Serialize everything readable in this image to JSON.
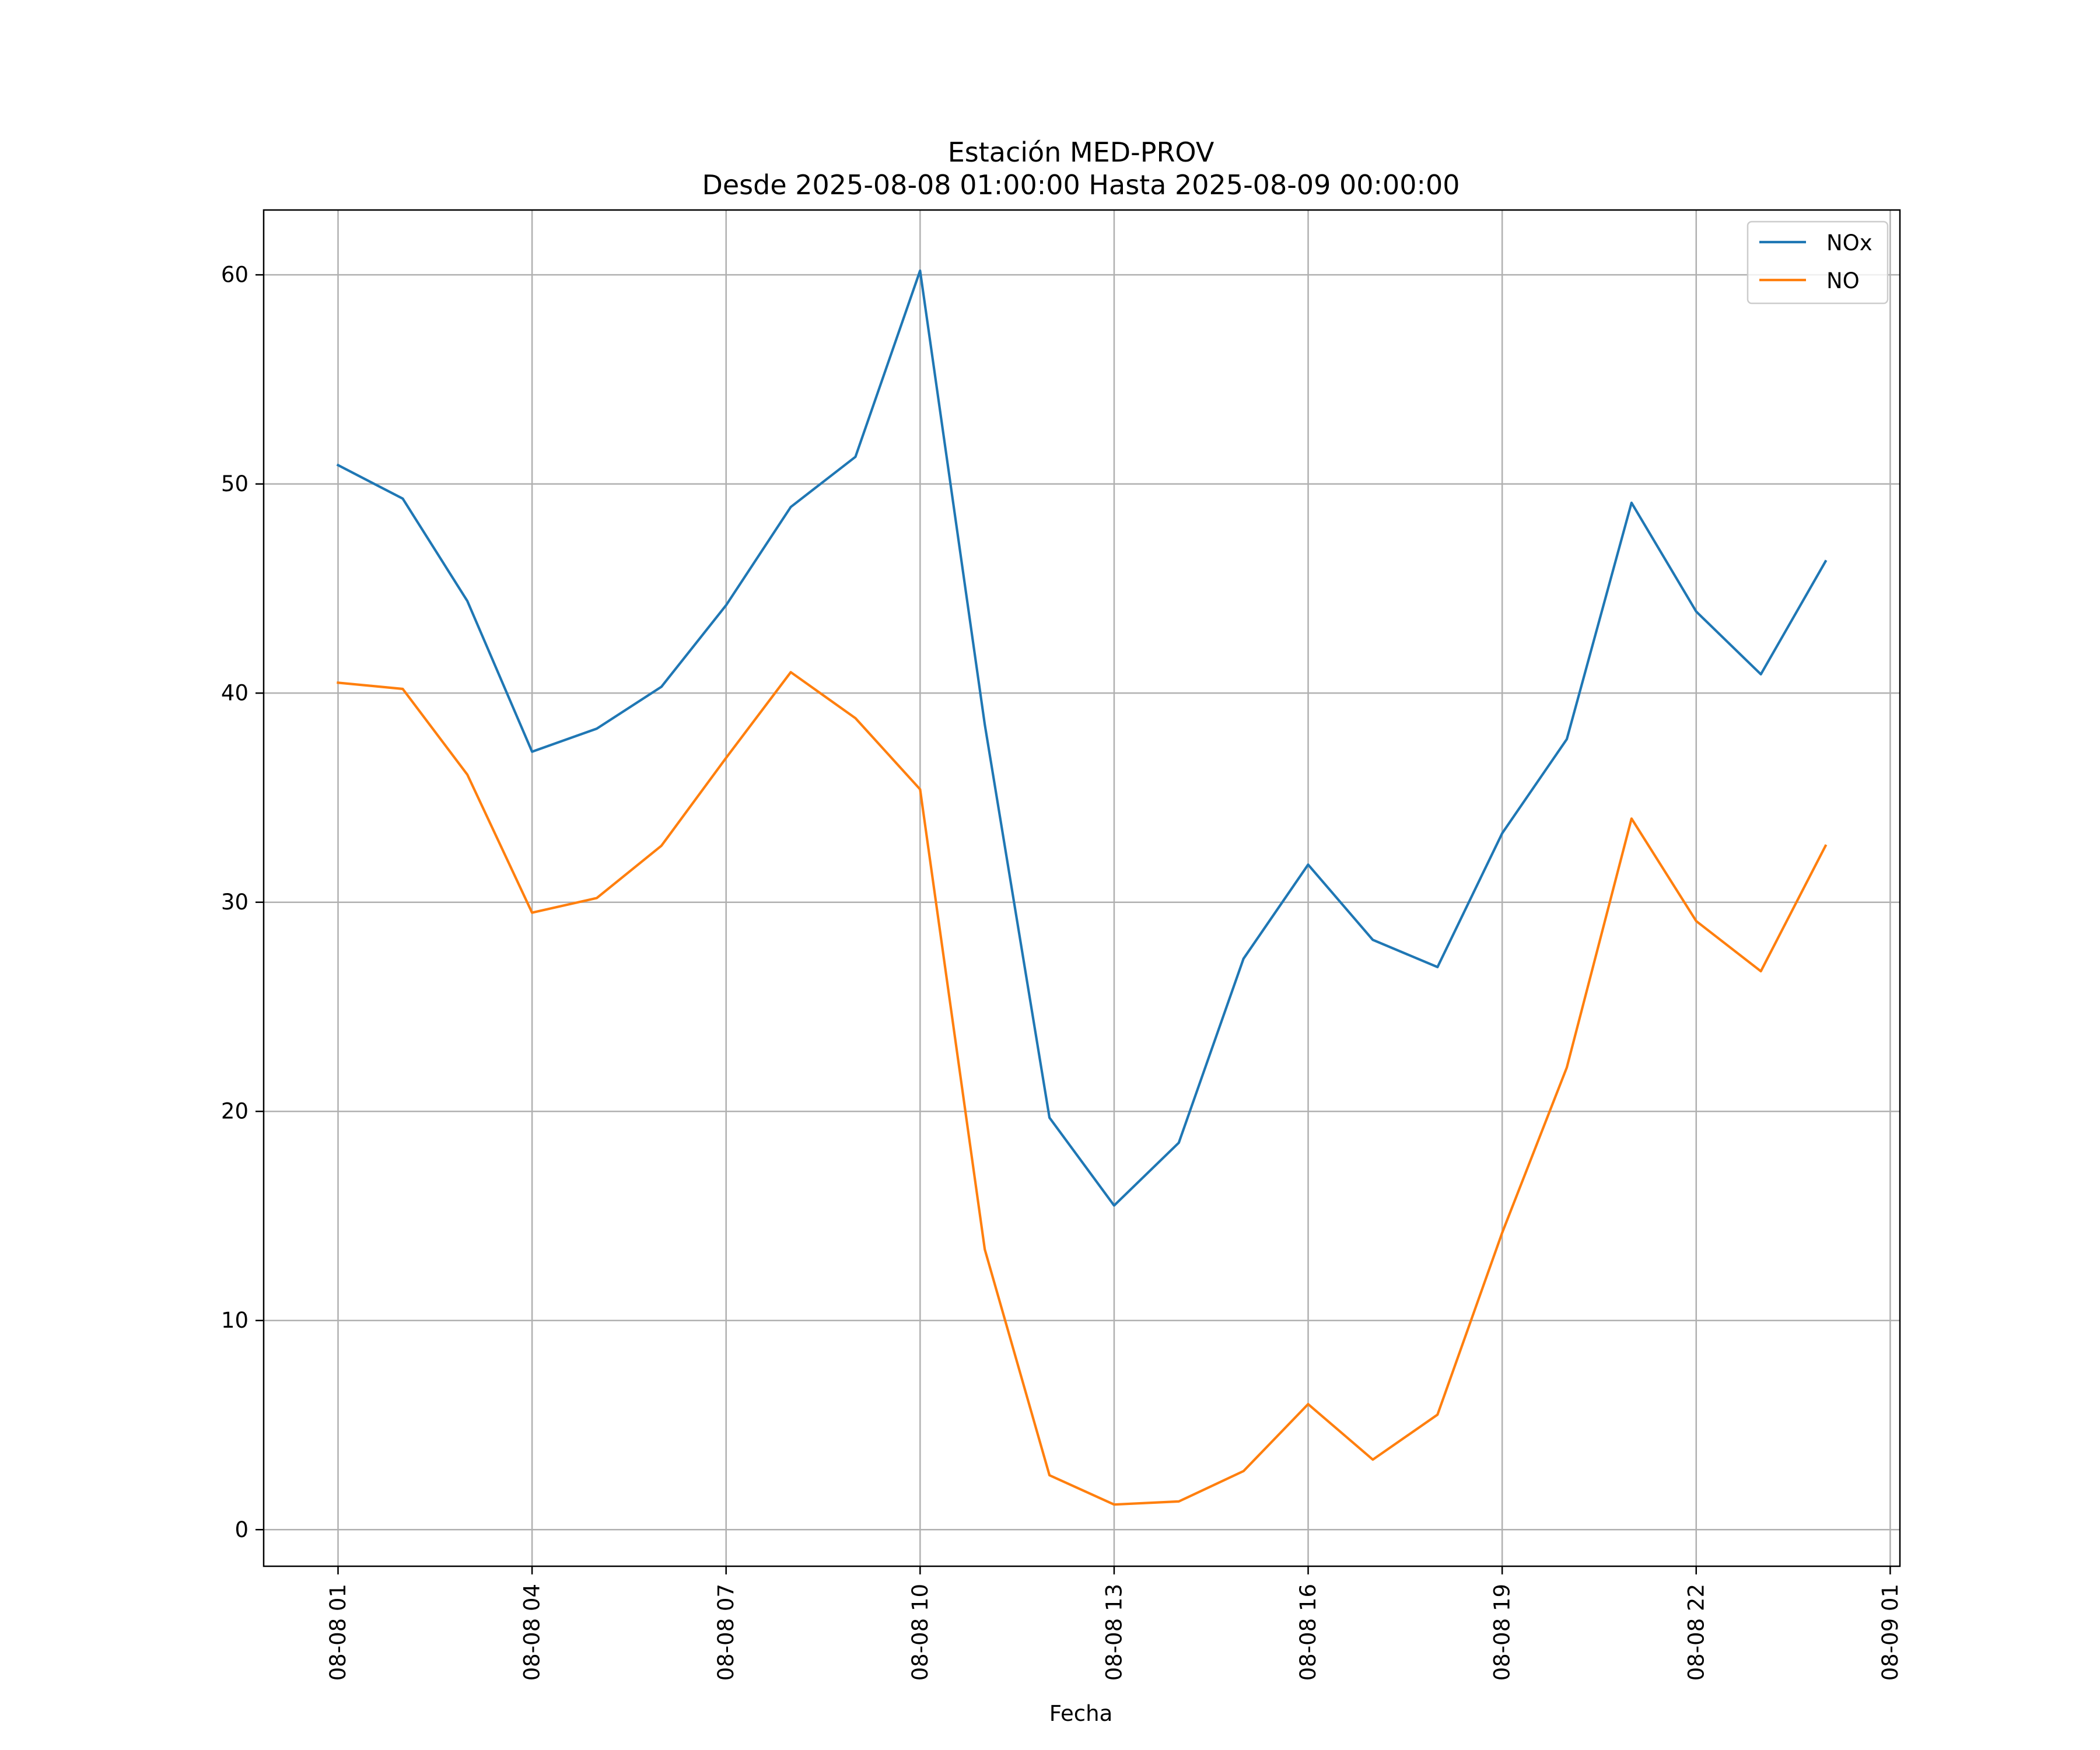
{
  "chart_data": {
    "type": "line",
    "title": "Estación MED-PROV",
    "subtitle": "Desde 2025-08-08 01:00:00 Hasta 2025-08-09 00:00:00",
    "xlabel": "Fecha",
    "ylabel": "",
    "x": [
      "2025-08-08 01:00",
      "2025-08-08 02:00",
      "2025-08-08 03:00",
      "2025-08-08 04:00",
      "2025-08-08 05:00",
      "2025-08-08 06:00",
      "2025-08-08 07:00",
      "2025-08-08 08:00",
      "2025-08-08 09:00",
      "2025-08-08 10:00",
      "2025-08-08 11:00",
      "2025-08-08 12:00",
      "2025-08-08 13:00",
      "2025-08-08 14:00",
      "2025-08-08 15:00",
      "2025-08-08 16:00",
      "2025-08-08 17:00",
      "2025-08-08 18:00",
      "2025-08-08 19:00",
      "2025-08-08 20:00",
      "2025-08-08 21:00",
      "2025-08-08 22:00",
      "2025-08-08 23:00",
      "2025-08-09 00:00"
    ],
    "series": [
      {
        "name": "NOx",
        "color": "#1f77b4",
        "values": [
          50.9,
          49.3,
          44.4,
          37.2,
          38.3,
          40.3,
          44.2,
          48.9,
          51.3,
          60.2,
          38.5,
          19.7,
          15.5,
          18.5,
          27.3,
          31.8,
          28.2,
          26.9,
          33.3,
          37.8,
          49.1,
          43.9,
          40.9,
          46.3
        ]
      },
      {
        "name": "NO",
        "color": "#ff7f0e",
        "values": [
          40.5,
          40.2,
          36.1,
          29.5,
          30.2,
          32.7,
          36.9,
          41.0,
          38.8,
          35.4,
          13.4,
          2.6,
          1.2,
          1.35,
          2.8,
          6.0,
          3.35,
          5.5,
          14.2,
          22.1,
          34.0,
          29.1,
          26.7,
          32.7
        ]
      }
    ],
    "xticks": [
      "08-08 01",
      "08-08 04",
      "08-08 07",
      "08-08 10",
      "08-08 13",
      "08-08 16",
      "08-08 19",
      "08-08 22",
      "08-09 01"
    ],
    "xtick_hours": [
      0,
      3,
      6,
      9,
      12,
      15,
      18,
      21,
      24
    ],
    "yticks": [
      0,
      10,
      20,
      30,
      40,
      50,
      60
    ],
    "ylim": [
      -1.75,
      63.1
    ],
    "xlim_hours": [
      -1.15,
      24.15
    ],
    "grid": true,
    "legend_position": "top-right"
  }
}
